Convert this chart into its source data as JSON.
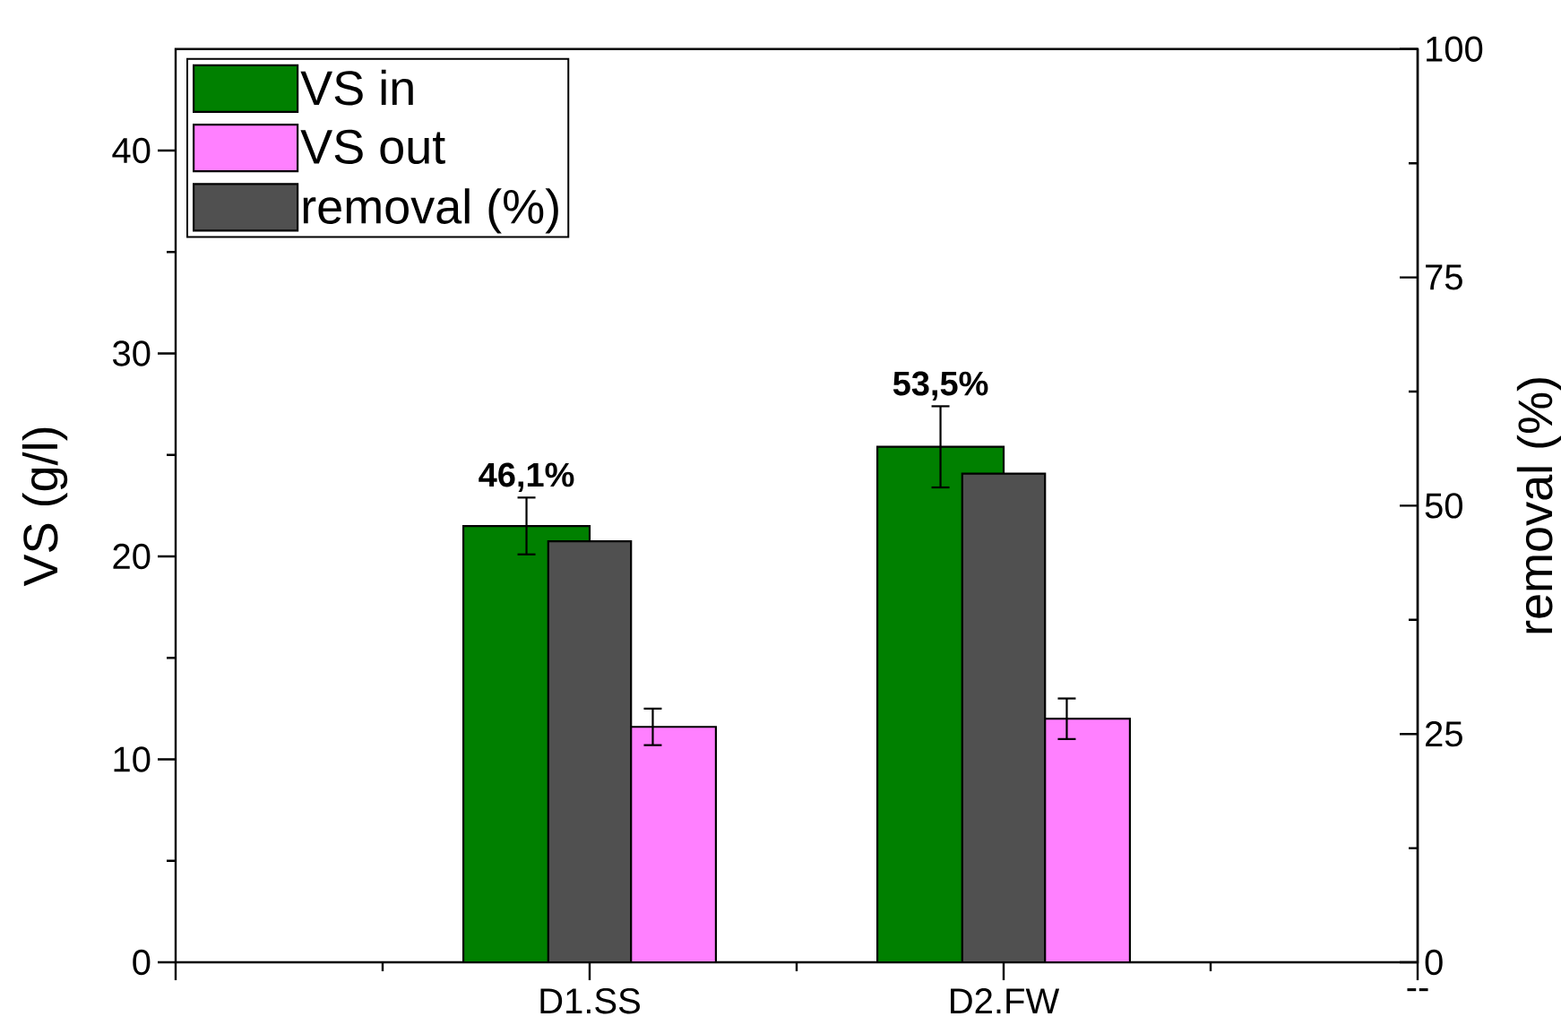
{
  "chart_data": {
    "type": "bar",
    "ylabel": "VS (g/l)",
    "y2label": "removal (%)",
    "categories": [
      null,
      "D1.SS",
      "D2.FW",
      "--"
    ],
    "series": [
      {
        "name": "VS in",
        "color": "#008000",
        "values": [
          null,
          21.5,
          25.4,
          null
        ],
        "errors": [
          null,
          1.4,
          2.0,
          null
        ]
      },
      {
        "name": "removal (%)",
        "color": "#505050",
        "axis": "y2",
        "values": [
          null,
          46.1,
          53.5,
          null
        ],
        "value_labels": [
          null,
          "46,1%",
          "53,5%",
          null
        ]
      },
      {
        "name": "VS out",
        "color": "#ff80ff",
        "values": [
          null,
          11.6,
          12.0,
          null
        ],
        "errors": [
          null,
          0.9,
          1.0,
          null
        ]
      }
    ],
    "ylim": [
      0,
      45
    ],
    "yticks": [
      0,
      10,
      20,
      30,
      40
    ],
    "y2lim": [
      0,
      100
    ],
    "y2ticks": [
      0,
      25,
      50,
      75,
      100
    ],
    "legend": "top left"
  }
}
